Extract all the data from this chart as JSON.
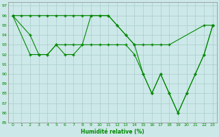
{
  "xlabel": "Humidité relative (%)",
  "xlim": [
    -0.5,
    23.5
  ],
  "ylim": [
    85,
    97.4
  ],
  "yticks": [
    85,
    86,
    87,
    88,
    89,
    90,
    91,
    92,
    93,
    94,
    95,
    96,
    97
  ],
  "xticks": [
    0,
    1,
    2,
    3,
    4,
    5,
    6,
    7,
    8,
    9,
    10,
    11,
    12,
    13,
    14,
    15,
    16,
    17,
    18,
    19,
    20,
    21,
    22,
    23
  ],
  "bg_color": "#cce8e8",
  "grid_color": "#aacccc",
  "line_color": "#008800",
  "line1_x": [
    0,
    1,
    2,
    3,
    4,
    5,
    6,
    7,
    8,
    9,
    10,
    11,
    12,
    13,
    14,
    15,
    16,
    17,
    18,
    22,
    23
  ],
  "line1_y": [
    96,
    96,
    96,
    96,
    96,
    96,
    96,
    96,
    96,
    96,
    96,
    96,
    95,
    94,
    93,
    93,
    93,
    93,
    93,
    95,
    95
  ],
  "line2_x": [
    0,
    2,
    3,
    4,
    5,
    6,
    7,
    8,
    9,
    10,
    11,
    12,
    13,
    14,
    15,
    16,
    17,
    18,
    19,
    20,
    21,
    22,
    23
  ],
  "line2_y": [
    96,
    94,
    92,
    92,
    93,
    93,
    93,
    93,
    96,
    96,
    96,
    95,
    94,
    93,
    90,
    88,
    90,
    88,
    86,
    88,
    90,
    92,
    95
  ],
  "line3_x": [
    0,
    2,
    3,
    4,
    5,
    6,
    7,
    8,
    9,
    10,
    11,
    12,
    13,
    14,
    15,
    16,
    17,
    18,
    19,
    20,
    21,
    22,
    23
  ],
  "line3_y": [
    96,
    92,
    92,
    92,
    93,
    92,
    92,
    93,
    93,
    93,
    93,
    93,
    93,
    92,
    90,
    88,
    90,
    88,
    86,
    88,
    90,
    92,
    95
  ]
}
